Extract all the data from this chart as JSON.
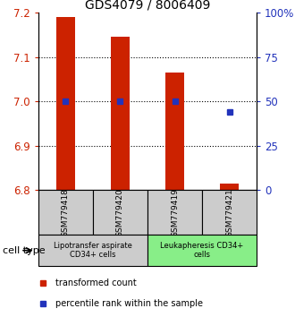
{
  "title": "GDS4079 / 8006409",
  "samples": [
    "GSM779418",
    "GSM779420",
    "GSM779419",
    "GSM779421"
  ],
  "red_values": [
    7.19,
    7.145,
    7.065,
    6.815
  ],
  "blue_values": [
    50,
    50,
    50,
    44
  ],
  "ylim_left": [
    6.8,
    7.2
  ],
  "ylim_right": [
    0,
    100
  ],
  "yticks_left": [
    6.8,
    6.9,
    7.0,
    7.1,
    7.2
  ],
  "yticks_right": [
    0,
    25,
    50,
    75,
    100
  ],
  "bar_bottom": 6.8,
  "bar_color": "#cc2200",
  "blue_color": "#2233bb",
  "group1_label": "Lipotransfer aspirate\nCD34+ cells",
  "group2_label": "Leukapheresis CD34+\ncells",
  "group1_color": "#cccccc",
  "group2_color": "#88ee88",
  "cell_type_label": "cell type",
  "legend_red": "transformed count",
  "legend_blue": "percentile rank within the sample",
  "left_tick_color": "#cc2200",
  "right_tick_color": "#2233bb",
  "bar_width": 0.35,
  "title_fontsize": 10,
  "tick_fontsize": 8.5,
  "sample_fontsize": 6.5,
  "group_fontsize": 6,
  "legend_fontsize": 7,
  "cell_type_fontsize": 8
}
